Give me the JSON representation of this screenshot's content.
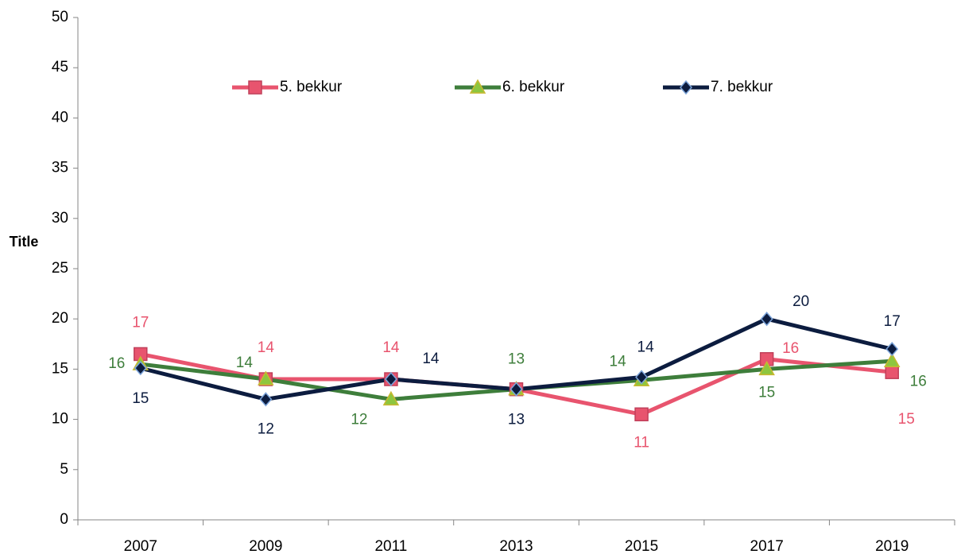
{
  "chart_data": {
    "type": "line",
    "y_label": "Title",
    "categories": [
      "2007",
      "2009",
      "2011",
      "2013",
      "2015",
      "2017",
      "2019"
    ],
    "series": [
      {
        "name": "5. bekkur",
        "color": "#e8546e",
        "marker": "square",
        "values": [
          16.5,
          14,
          14,
          13,
          10.5,
          16,
          14.7
        ],
        "value_labels": [
          "17",
          "14",
          "14",
          null,
          "11",
          "16",
          "15"
        ]
      },
      {
        "name": "6. bekkur",
        "color": "#3e7e3b",
        "marker": "triangle",
        "values": [
          15.5,
          14,
          12,
          13,
          13.9,
          15,
          15.8
        ],
        "value_labels": [
          "16",
          "14",
          "12",
          "13",
          "14",
          "15",
          "16"
        ]
      },
      {
        "name": "7. bekkur",
        "color": "#0c1c3f",
        "marker": "diamond",
        "values": [
          15.1,
          12,
          14,
          13,
          14.2,
          20,
          17
        ],
        "value_labels": [
          "15",
          "12",
          "14",
          "13",
          "14",
          "20",
          "17"
        ]
      }
    ],
    "ylim": [
      0,
      50
    ],
    "yticks": [
      0,
      5,
      10,
      15,
      20,
      25,
      30,
      35,
      40,
      45,
      50
    ],
    "legend": "top"
  }
}
